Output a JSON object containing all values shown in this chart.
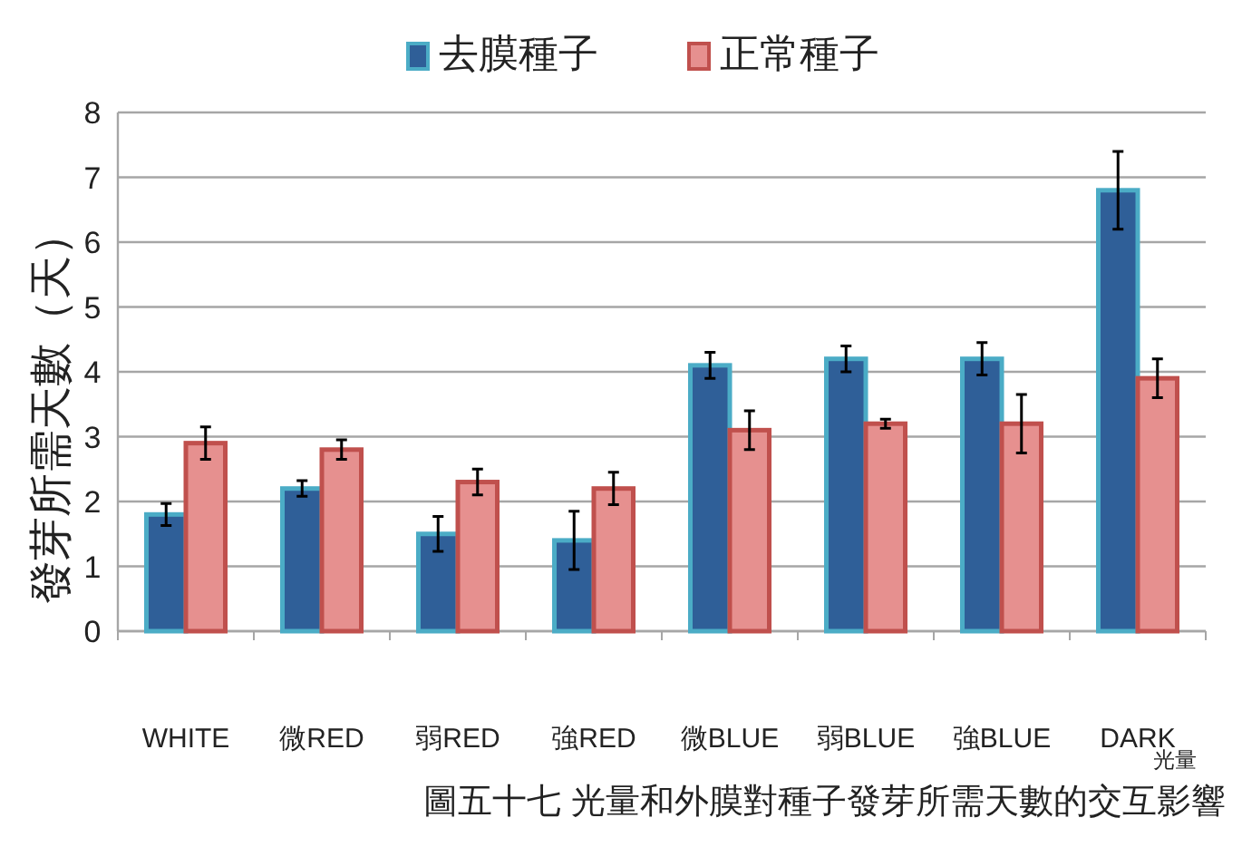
{
  "chart_data": {
    "type": "bar",
    "categories": [
      "WHITE",
      "微RED",
      "弱RED",
      "強RED",
      "微BLUE",
      "弱BLUE",
      "強BLUE",
      "DARK"
    ],
    "series": [
      {
        "name": "去膜種子",
        "color": "#2f5f98",
        "values": [
          1.8,
          2.2,
          1.5,
          1.4,
          4.1,
          4.2,
          4.2,
          6.8
        ],
        "errors": [
          0.17,
          0.12,
          0.27,
          0.45,
          0.2,
          0.2,
          0.25,
          0.6
        ]
      },
      {
        "name": "正常種子",
        "color": "#e6908f",
        "values": [
          2.9,
          2.8,
          2.3,
          2.2,
          3.1,
          3.2,
          3.2,
          3.9
        ],
        "errors": [
          0.25,
          0.15,
          0.2,
          0.25,
          0.3,
          0.07,
          0.45,
          0.3
        ]
      }
    ],
    "ylim": [
      0,
      8
    ],
    "yticks": [
      0,
      1,
      2,
      3,
      4,
      5,
      6,
      7,
      8
    ],
    "grid": "y",
    "legend": "top",
    "xlabel": "光量",
    "ylabel": "發芽所需天數（天）",
    "annotations": [
      "圖五十七 光量和外膜對種子發芽所需天數的交互影響"
    ]
  }
}
